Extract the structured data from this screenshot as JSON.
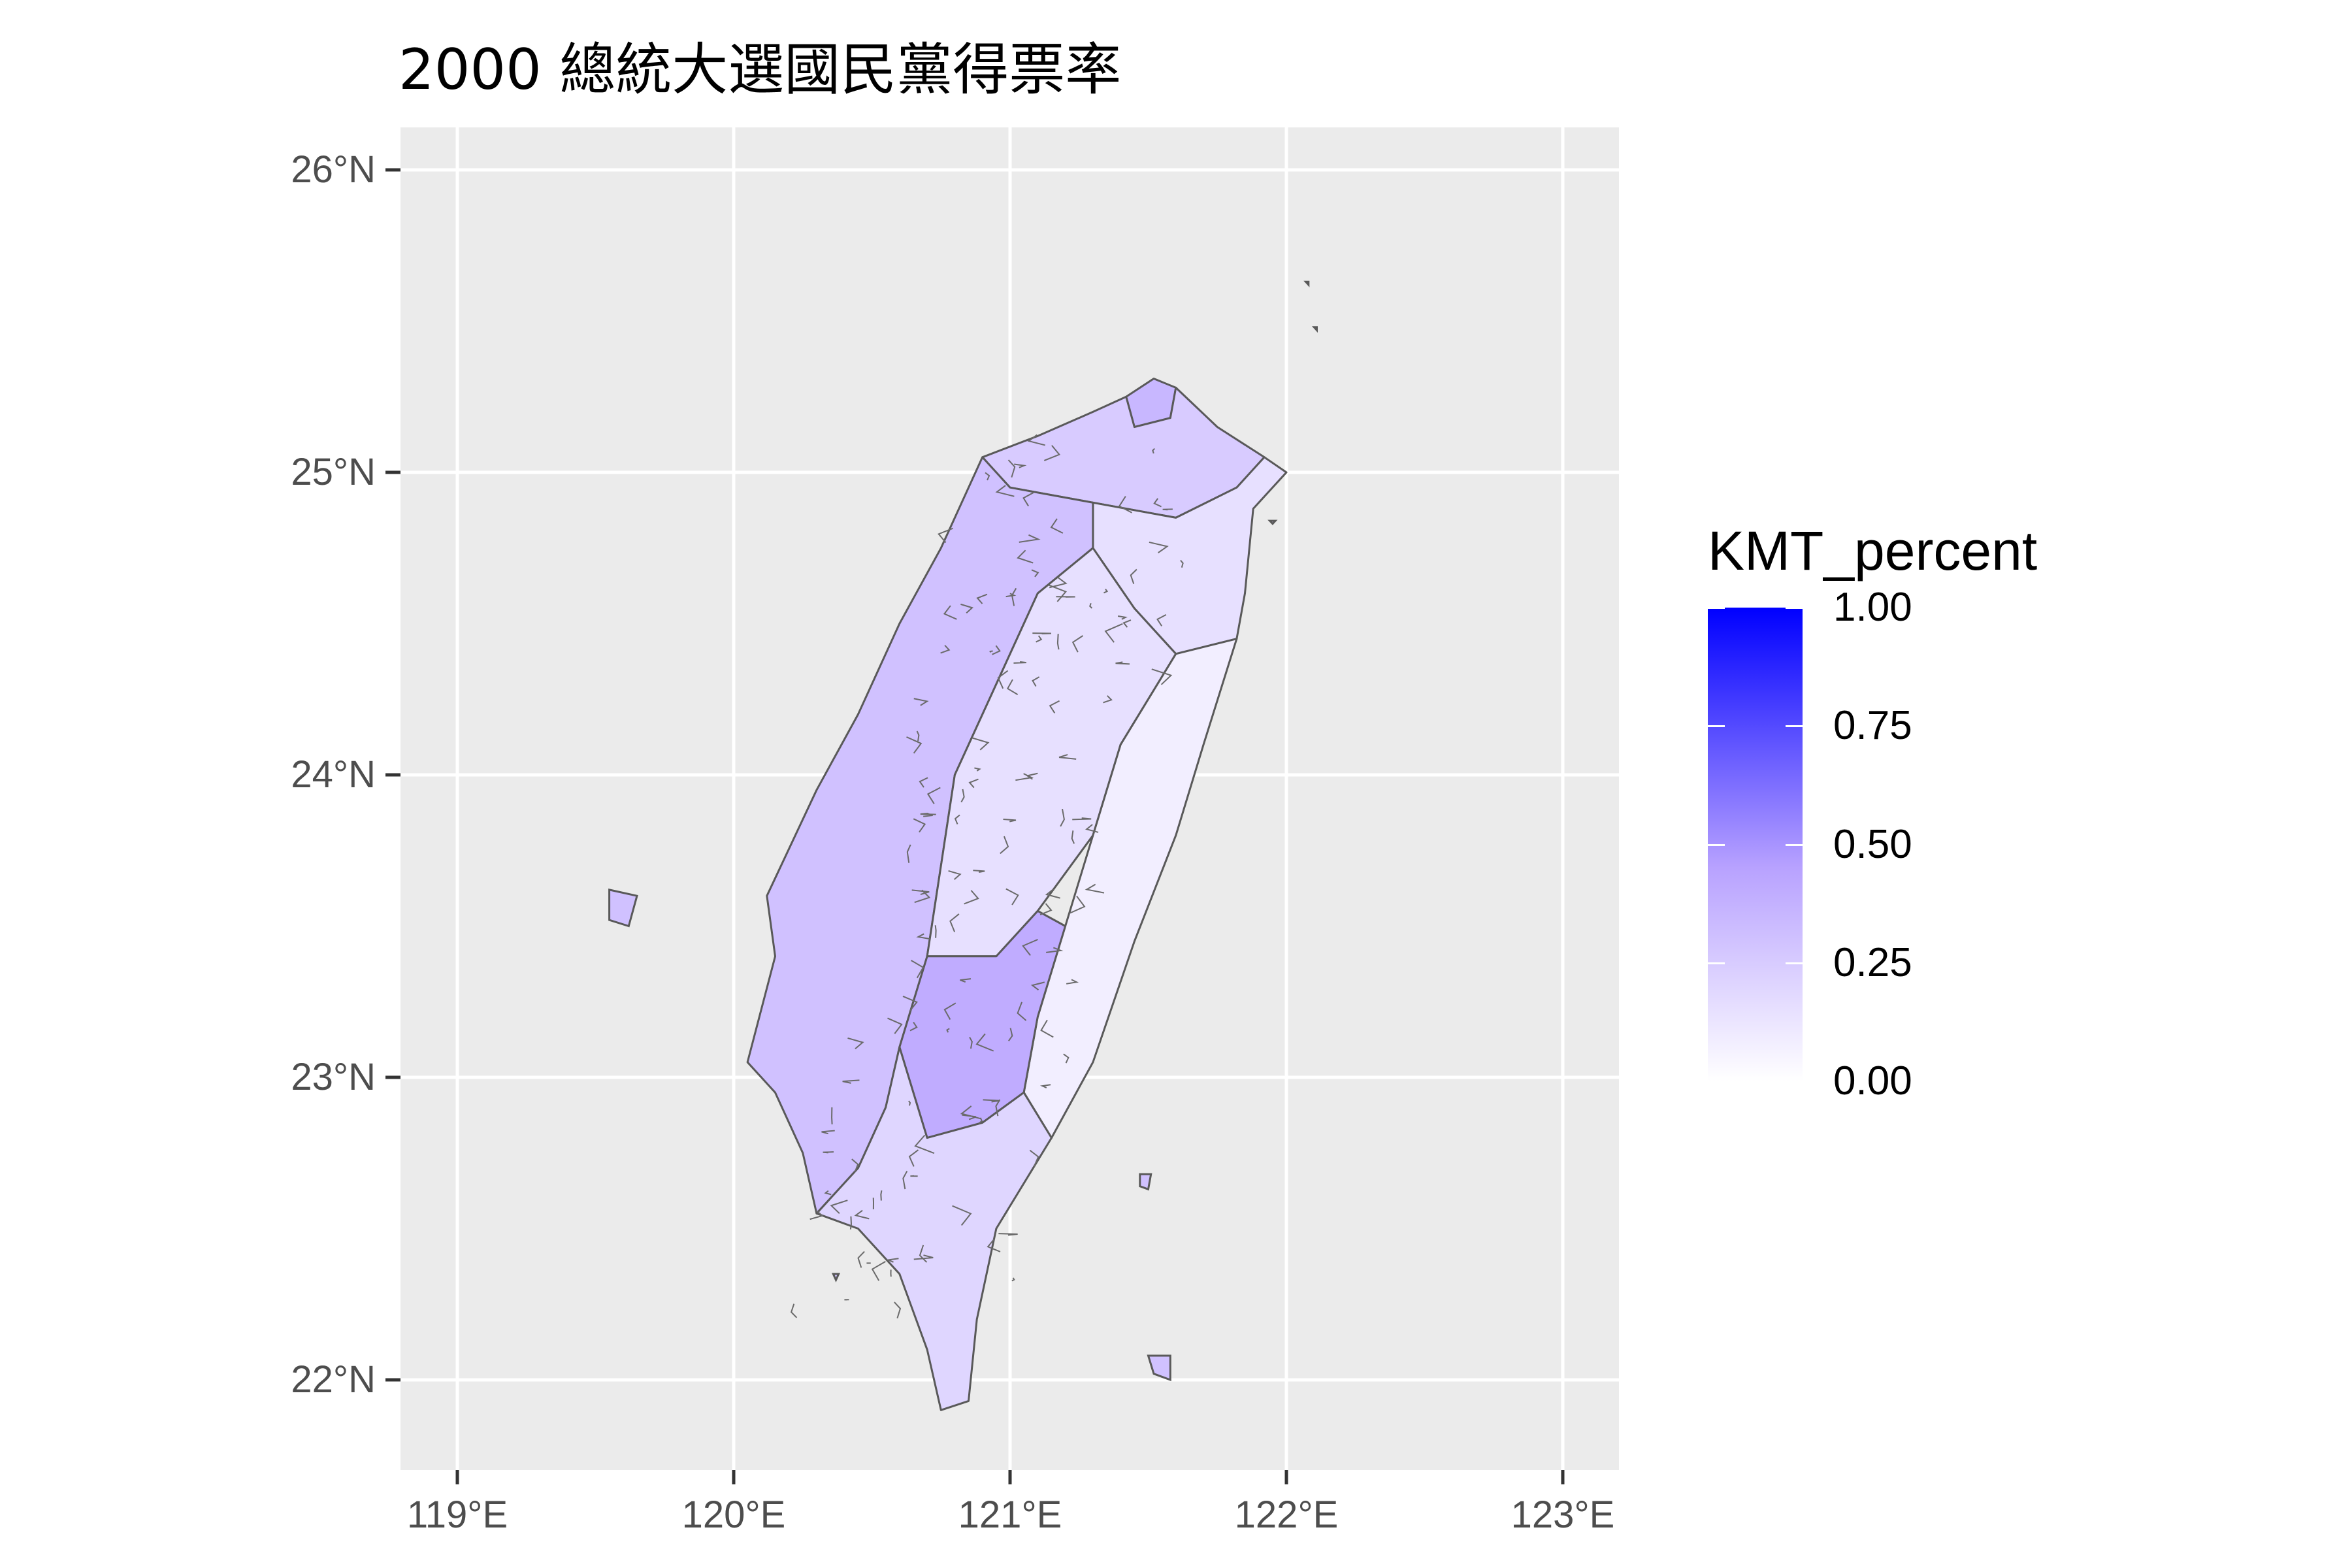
{
  "title": "2000 總統大選國民黨得票率",
  "chart_data": {
    "type": "choropleth",
    "title": "2000 總統大選國民黨得票率",
    "fill_variable": "KMT_percent",
    "x_axis": {
      "ticks": [
        119,
        120,
        121,
        122,
        123
      ],
      "tick_labels": [
        "119°E",
        "120°E",
        "121°E",
        "122°E",
        "123°E"
      ],
      "range": [
        118.8,
        123.2
      ]
    },
    "y_axis": {
      "ticks": [
        22,
        23,
        24,
        25,
        26
      ],
      "tick_labels": [
        "22°N",
        "23°N",
        "24°N",
        "25°N",
        "26°N"
      ],
      "range": [
        21.7,
        26.1
      ]
    },
    "grid": true,
    "legend": {
      "title": "KMT_percent",
      "position": "right",
      "scale": [
        0,
        1
      ],
      "breaks": [
        0.0,
        0.25,
        0.5,
        0.75,
        1.0
      ],
      "labels": [
        "0.00",
        "0.25",
        "0.50",
        "0.75",
        "1.00"
      ],
      "low_color": "#ffffff",
      "high_color": "#0000ff"
    },
    "regions_approx_values": [
      {
        "area": "northern tip",
        "value": 0.35
      },
      {
        "area": "north metro",
        "value": 0.25
      },
      {
        "area": "northeast",
        "value": 0.15
      },
      {
        "area": "east coast",
        "value": 0.08
      },
      {
        "area": "central mountains",
        "value": 0.15
      },
      {
        "area": "western plains",
        "value": 0.3
      },
      {
        "area": "south-central mountains",
        "value": 0.4
      },
      {
        "area": "southern tip",
        "value": 0.2
      }
    ],
    "colors": {
      "panel_background": "#ebebeb",
      "gridline": "#ffffff",
      "border": "#595959"
    }
  }
}
